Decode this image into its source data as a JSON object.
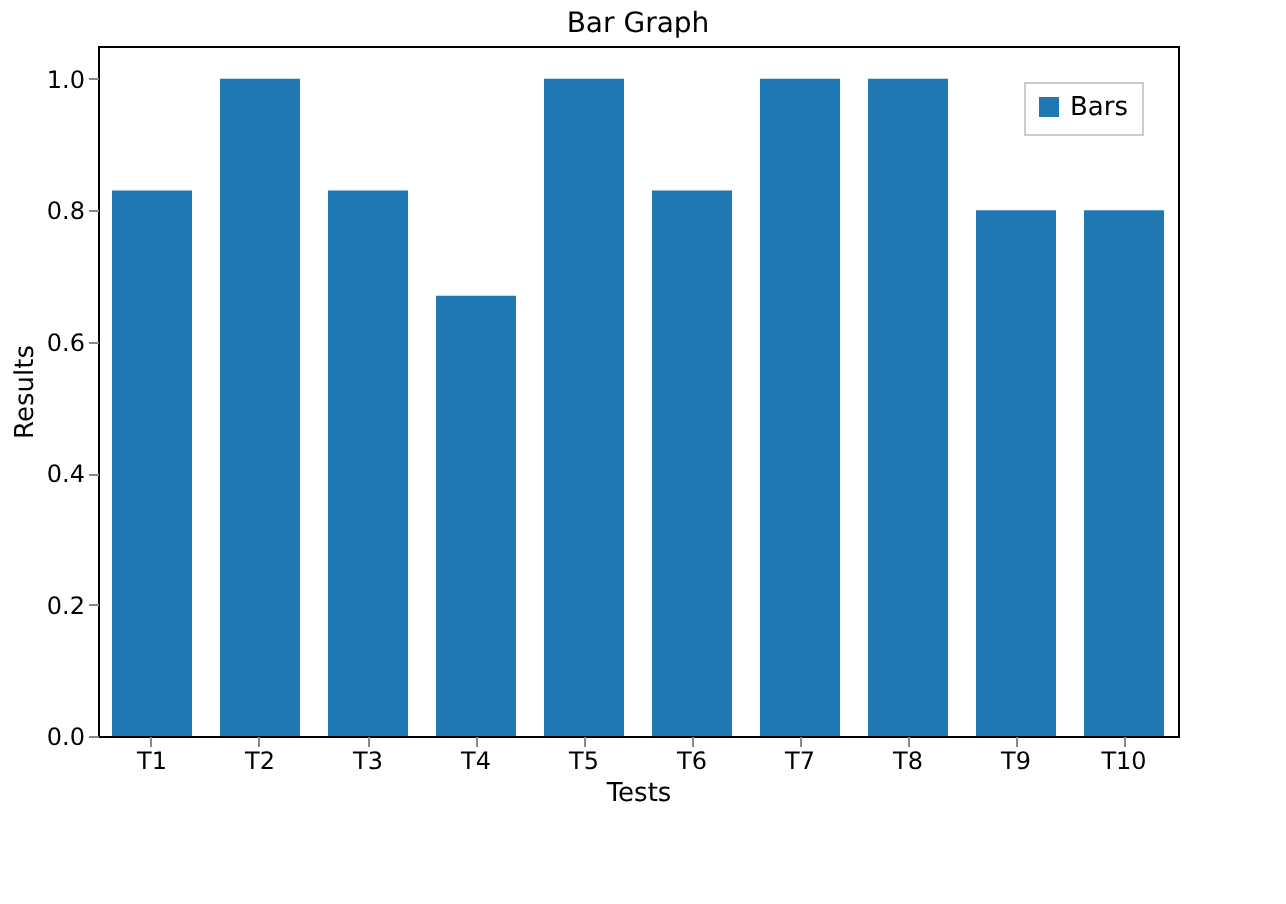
{
  "chart_data": {
    "type": "bar",
    "title": "Bar Graph",
    "xlabel": "Tests",
    "ylabel": "Results",
    "categories": [
      "T1",
      "T2",
      "T3",
      "T4",
      "T5",
      "T6",
      "T7",
      "T8",
      "T9",
      "T10"
    ],
    "series": [
      {
        "name": "Bars",
        "color": "#1f77b4",
        "values": [
          0.83,
          1.0,
          0.83,
          0.67,
          1.0,
          0.83,
          1.0,
          1.0,
          0.8,
          0.8
        ]
      }
    ],
    "ylim": [
      0,
      1.05
    ],
    "yticks": [
      {
        "value": 0,
        "label": "0.0"
      },
      {
        "value": 0.2,
        "label": "0.2"
      },
      {
        "value": 0.4,
        "label": "0.4"
      },
      {
        "value": 0.6,
        "label": "0.6"
      },
      {
        "value": 0.8,
        "label": "0.8"
      },
      {
        "value": 1.0,
        "label": "1.0"
      }
    ],
    "legend": "top right",
    "grid": false
  }
}
